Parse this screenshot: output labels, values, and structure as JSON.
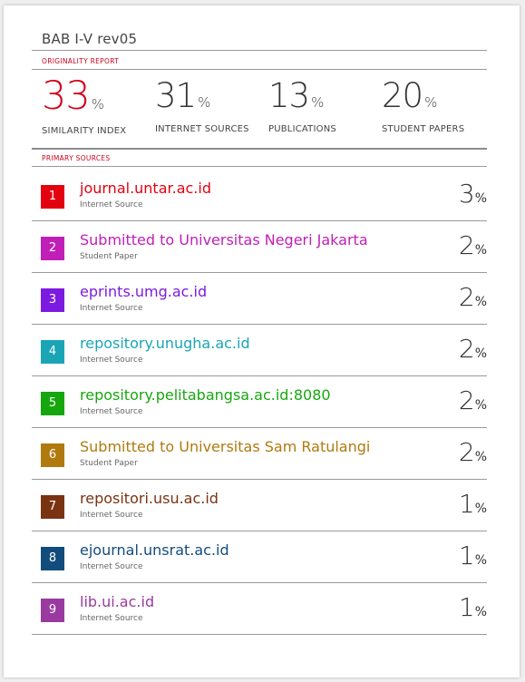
{
  "document": {
    "title": "BAB I-V rev05"
  },
  "originality_report": {
    "label": "ORIGINALITY REPORT",
    "stats": [
      {
        "value": "33",
        "unit": "%",
        "label": "SIMILARITY INDEX"
      },
      {
        "value": "31",
        "unit": "%",
        "label": "INTERNET SOURCES"
      },
      {
        "value": "13",
        "unit": "%",
        "label": "PUBLICATIONS"
      },
      {
        "value": "20",
        "unit": "%",
        "label": "STUDENT PAPERS"
      }
    ],
    "accent_color": "#d0021b"
  },
  "primary_sources": {
    "label": "PRIMARY SOURCES",
    "items": [
      {
        "rank": "1",
        "name": "journal.untar.ac.id",
        "type": "Internet Source",
        "percent": "3",
        "unit": "%",
        "color": "#e3000f"
      },
      {
        "rank": "2",
        "name": "Submitted to Universitas Negeri Jakarta",
        "type": "Student Paper",
        "percent": "2",
        "unit": "%",
        "color": "#c11eb8"
      },
      {
        "rank": "3",
        "name": "eprints.umg.ac.id",
        "type": "Internet Source",
        "percent": "2",
        "unit": "%",
        "color": "#7d1ae0"
      },
      {
        "rank": "4",
        "name": "repository.unugha.ac.id",
        "type": "Internet Source",
        "percent": "2",
        "unit": "%",
        "color": "#1aa5b5"
      },
      {
        "rank": "5",
        "name": "repository.pelitabangsa.ac.id:8080",
        "type": "Internet Source",
        "percent": "2",
        "unit": "%",
        "color": "#16a70e"
      },
      {
        "rank": "6",
        "name": "Submitted to Universitas Sam Ratulangi",
        "type": "Student Paper",
        "percent": "2",
        "unit": "%",
        "color": "#b07a0e"
      },
      {
        "rank": "7",
        "name": "repositori.usu.ac.id",
        "type": "Internet Source",
        "percent": "1",
        "unit": "%",
        "color": "#7a3311"
      },
      {
        "rank": "8",
        "name": "ejournal.unsrat.ac.id",
        "type": "Internet Source",
        "percent": "1",
        "unit": "%",
        "color": "#124c7c"
      },
      {
        "rank": "9",
        "name": "lib.ui.ac.id",
        "type": "Internet Source",
        "percent": "1",
        "unit": "%",
        "color": "#9a3aa0"
      }
    ]
  }
}
